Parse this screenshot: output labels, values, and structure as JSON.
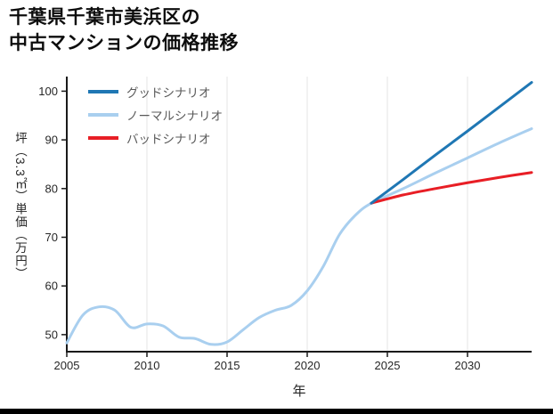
{
  "page": {
    "background": "#ffffff",
    "footer_bar_color": "#000000"
  },
  "chart_data": {
    "type": "line",
    "title": "千葉県千葉市美浜区の中古マンションの価格推移",
    "title_lines": [
      "千葉県千葉市美浜区の",
      "中古マンションの価格推移"
    ],
    "xlabel": "年",
    "ylabel": "坪（3.3㎡）単価（万円）",
    "xlim": [
      2005,
      2034
    ],
    "ylim": [
      46.5,
      103
    ],
    "xticks": [
      2005,
      2010,
      2015,
      2020,
      2025,
      2030
    ],
    "yticks": [
      50,
      60,
      70,
      80,
      90,
      100
    ],
    "grid": "vertical-only",
    "legend_position": "top-left",
    "axis_color": "#1a1a1a",
    "gridline_color": "#e6e6e6",
    "tick_label_color": "#262626",
    "legend_text_color": "#595959",
    "series": [
      {
        "name": "グッドシナリオ",
        "color": "#1f77b4",
        "x": [
          2024,
          2026,
          2028,
          2030,
          2032,
          2034
        ],
        "y": [
          77,
          81.9,
          86.9,
          91.8,
          96.8,
          101.8
        ]
      },
      {
        "name": "ノーマルシナリオ",
        "color": "#a9cfef",
        "x": [
          2005,
          2006,
          2007,
          2008,
          2009,
          2010,
          2011,
          2012,
          2013,
          2014,
          2015,
          2016,
          2017,
          2018,
          2019,
          2020,
          2021,
          2022,
          2023,
          2024,
          2026,
          2028,
          2030,
          2032,
          2034
        ],
        "y": [
          48.3,
          54,
          55.7,
          55,
          51.5,
          52.2,
          51.8,
          49.5,
          49.2,
          48,
          48.5,
          51,
          53.5,
          55,
          56,
          59,
          64,
          70.5,
          74.5,
          77,
          80,
          83.2,
          86.3,
          89.4,
          92.3
        ]
      },
      {
        "name": "バッドシナリオ",
        "color": "#e81e25",
        "x": [
          2024,
          2026,
          2028,
          2030,
          2032,
          2034
        ],
        "y": [
          77,
          78.7,
          80,
          81.2,
          82.3,
          83.3
        ]
      }
    ]
  }
}
